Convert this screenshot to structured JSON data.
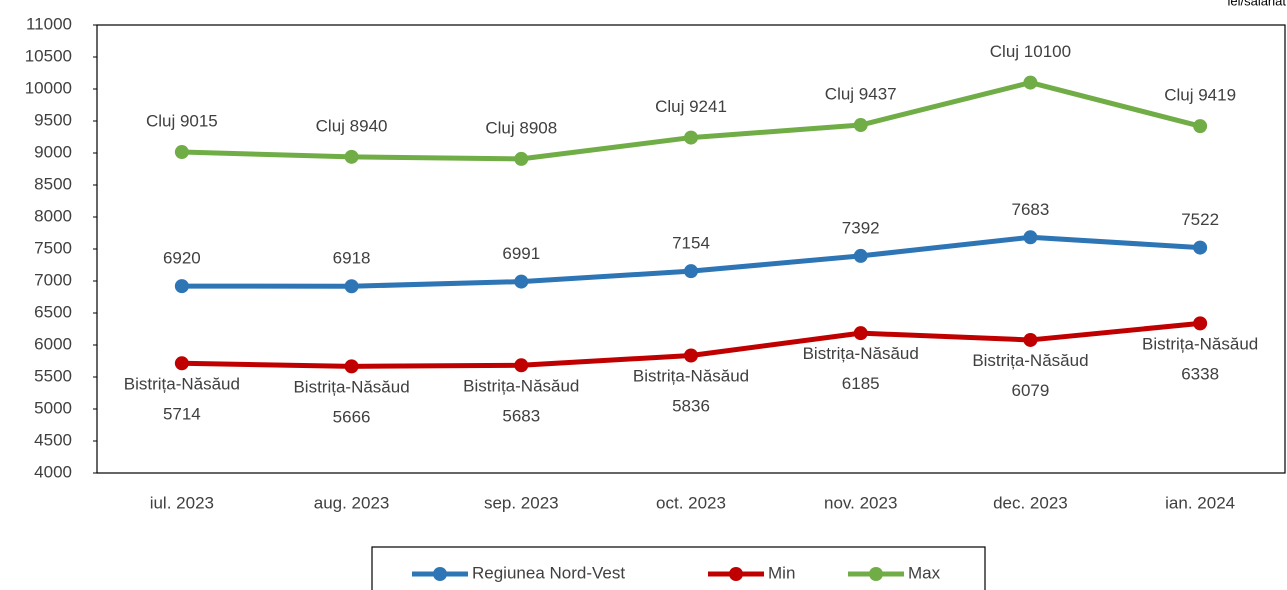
{
  "chart_data": {
    "type": "line",
    "unit_label": "lei/salariat",
    "categories": [
      "iul. 2023",
      "aug. 2023",
      "sep. 2023",
      "oct. 2023",
      "nov. 2023",
      "dec. 2023",
      "ian. 2024"
    ],
    "series": [
      {
        "name": "Regiunea Nord-Vest",
        "color": "#2e75b6",
        "values": [
          6920,
          6918,
          6991,
          7154,
          7392,
          7683,
          7522
        ]
      },
      {
        "name": "Min",
        "color": "#c00000",
        "values": [
          5714,
          5666,
          5683,
          5836,
          6185,
          6079,
          6338
        ],
        "value_labels": [
          "Bistrița-Năsăud\n5714",
          "Bistrița-Năsăud\n5666",
          "Bistrița-Năsăud\n5683",
          "Bistrița-Năsăud\n5836",
          "Bistrița-Năsăud\n6185",
          "Bistrița-Năsăud\n6079",
          "Bistrița-Năsăud\n6338"
        ]
      },
      {
        "name": "Max",
        "color": "#70ad47",
        "values": [
          9015,
          8940,
          8908,
          9241,
          9437,
          10100,
          9419
        ],
        "value_labels": [
          "Cluj 9015",
          "Cluj 8940",
          "Cluj 8908",
          "Cluj 9241",
          "Cluj 9437",
          "Cluj 10100",
          "Cluj 9419"
        ]
      }
    ],
    "ylim": [
      4000,
      11000
    ],
    "yticks": [
      4000,
      4500,
      5000,
      5500,
      6000,
      6500,
      7000,
      7500,
      8000,
      8500,
      9000,
      9500,
      10000,
      10500,
      11000
    ],
    "grid": false,
    "legend": "bottom"
  }
}
